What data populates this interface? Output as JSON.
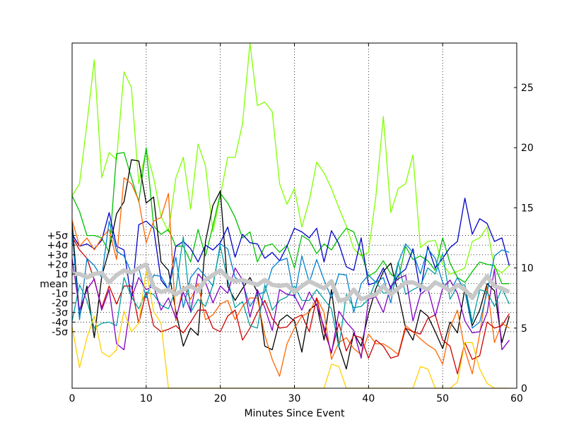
{
  "chart_data": {
    "type": "line",
    "title": "",
    "xlabel": "Minutes Since Event",
    "ylabel": "",
    "xlim": [
      0,
      60
    ],
    "ylim": [
      0,
      28.7
    ],
    "grid": true,
    "x_ticks": [
      0,
      10,
      20,
      30,
      40,
      50,
      60
    ],
    "right_y_ticks": [
      0,
      5,
      10,
      15,
      20,
      25
    ],
    "left_labels": [
      {
        "label": "+5σ",
        "value": 12.7
      },
      {
        "label": "+4σ",
        "value": 11.9
      },
      {
        "label": "+3σ",
        "value": 11.1
      },
      {
        "label": "+2σ",
        "value": 10.3
      },
      {
        "label": "1σ",
        "value": 9.5
      },
      {
        "label": "mean",
        "value": 8.7
      },
      {
        "label": "-1σ",
        "value": 7.9
      },
      {
        "label": "-2σ",
        "value": 7.1
      },
      {
        "label": "-3σ",
        "value": 6.3
      },
      {
        "label": "-4σ",
        "value": 5.5
      },
      {
        "label": "-5σ",
        "value": 4.7
      }
    ],
    "x": [
      0,
      1,
      2,
      3,
      4,
      5,
      6,
      7,
      8,
      9,
      10,
      11,
      12,
      13,
      14,
      15,
      16,
      17,
      18,
      19,
      20,
      21,
      22,
      23,
      24,
      25,
      26,
      27,
      28,
      29,
      30,
      31,
      32,
      33,
      34,
      35,
      36,
      37,
      38,
      39,
      40,
      41,
      42,
      43,
      44,
      45,
      46,
      47,
      48,
      49,
      50,
      51,
      52,
      53,
      54,
      55,
      56,
      57,
      58,
      59
    ],
    "series": [
      {
        "color": "#7fff00",
        "width": 1.3,
        "values": [
          16,
          17,
          22,
          27.3,
          17.5,
          19.6,
          19,
          26.3,
          25,
          17,
          19.8,
          17.5,
          14.3,
          13,
          17.5,
          19.2,
          14.9,
          20.3,
          18.5,
          13,
          16,
          19.2,
          19.2,
          22,
          28.7,
          23.5,
          23.8,
          23,
          17,
          15.3,
          16.6,
          13.4,
          15.6,
          18.8,
          17.9,
          16.6,
          15,
          13.5,
          11.6,
          11,
          11.3,
          16,
          22.6,
          14.6,
          16.6,
          17,
          19.4,
          11.7,
          12.2,
          12.3,
          10.3,
          9.5,
          9.7,
          10,
          12.2,
          12.5,
          13.4,
          10,
          9.6,
          10.2
        ]
      },
      {
        "color": "#00c000",
        "width": 1.3,
        "values": [
          16,
          14.7,
          12.7,
          12.7,
          12.5,
          11.3,
          19.5,
          19.6,
          17.5,
          15.5,
          20,
          13.5,
          12.8,
          13.2,
          11.8,
          11.8,
          10.5,
          13.2,
          11,
          13.5,
          16.2,
          15.4,
          14.2,
          12.5,
          13,
          10.5,
          11.8,
          12,
          11.3,
          11.9,
          10,
          12.7,
          12.3,
          11.2,
          12,
          11.5,
          12.5,
          13.3,
          13,
          11.3,
          9.3,
          9.7,
          10.6,
          9.5,
          9,
          11.8,
          10.7,
          11,
          10.6,
          9.8,
          12.5,
          10.4,
          9.2,
          8.8,
          9.7,
          10.5,
          10.3,
          10.2,
          8.7,
          8.7
        ]
      },
      {
        "color": "#0000c8",
        "width": 1.3,
        "values": [
          12.8,
          11.8,
          12,
          11.6,
          12.3,
          14.6,
          11.8,
          11.5,
          7.4,
          13.6,
          13.9,
          13.3,
          9,
          8.2,
          11.8,
          12.2,
          11.6,
          10.5,
          11.9,
          11.5,
          12.1,
          13.4,
          10.9,
          12.8,
          12.1,
          12,
          10.8,
          11.3,
          10.6,
          11.8,
          13.3,
          13,
          12.5,
          13.3,
          10.5,
          13.1,
          12,
          10.1,
          9.8,
          12.5,
          8.6,
          8.8,
          10,
          8.3,
          9.4,
          9.9,
          11.6,
          8,
          11.8,
          10,
          10.8,
          11.7,
          12.2,
          15.8,
          12.8,
          14.1,
          13.7,
          12.2,
          12.5,
          10.2
        ]
      },
      {
        "color": "#000000",
        "width": 1.3,
        "values": [
          13.8,
          6,
          8.5,
          4.2,
          9.3,
          11.5,
          14.5,
          15.5,
          19,
          18.9,
          15.4,
          15.9,
          10.5,
          9.8,
          6.4,
          3.5,
          5,
          4.4,
          12.2,
          15.2,
          16.4,
          8.5,
          7.3,
          8.3,
          9.2,
          8,
          3.5,
          3.2,
          5.6,
          6.1,
          5.6,
          3,
          6.5,
          7,
          4,
          8.2,
          3.5,
          1.6,
          4.6,
          3.5,
          6.2,
          8.3,
          9.7,
          10.4,
          7.9,
          5,
          4,
          6.5,
          6,
          4.7,
          3.3,
          5.5,
          4.6,
          8.3,
          5.2,
          6.5,
          8.7,
          8.1,
          3.8,
          6
        ]
      },
      {
        "color": "#ff6600",
        "width": 1.3,
        "values": [
          14,
          11.8,
          12.5,
          11.5,
          12.5,
          13.2,
          10.7,
          17.5,
          17,
          15.6,
          12.1,
          13.9,
          14.2,
          16.2,
          5.6,
          8.5,
          7.4,
          8.7,
          5.7,
          6.1,
          7,
          7.3,
          5.7,
          6.8,
          7.5,
          7.5,
          4.4,
          2.4,
          1,
          3.7,
          5,
          6,
          6.3,
          7.5,
          6.3,
          2.4,
          3.8,
          4.2,
          3.3,
          2.8,
          4.5,
          3.7,
          3.7,
          3.3,
          2.8,
          5.2,
          4.7,
          4.1,
          3.6,
          3.2,
          2,
          5,
          6.5,
          3.2,
          1.2,
          4.5,
          8.5,
          3.8,
          5.4,
          5
        ]
      },
      {
        "color": "#cc0000",
        "width": 1.3,
        "values": [
          12.6,
          11.5,
          10.8,
          9,
          6.7,
          8.5,
          7,
          8.5,
          8.5,
          5.4,
          8,
          5.2,
          4.7,
          4.9,
          5.2,
          4.6,
          5.5,
          6.5,
          6.5,
          5,
          4.7,
          6,
          6.5,
          4,
          5,
          6.3,
          7.3,
          5.8,
          5,
          5.1,
          5.8,
          6.1,
          4.7,
          7.5,
          4.8,
          3,
          5.4,
          3.1,
          4.4,
          4.2,
          2.5,
          4,
          3.5,
          2.5,
          2.7,
          5,
          4.7,
          4.5,
          5.8,
          6.1,
          4,
          3.5,
          1.2,
          3.8,
          2.4,
          2.7,
          5.5,
          5,
          5.2,
          6.2
        ]
      },
      {
        "color": "#0080d0",
        "width": 1.3,
        "values": [
          13,
          5.7,
          10.8,
          10.2,
          9.2,
          13.9,
          11.4,
          11,
          9.6,
          10,
          7.5,
          9.4,
          9.3,
          8.2,
          10.9,
          6.7,
          9.2,
          10,
          9.3,
          8.5,
          12,
          11.6,
          9.2,
          8.8,
          6.8,
          7.8,
          8,
          10,
          10.6,
          10.8,
          7.5,
          11,
          8.8,
          10.7,
          9,
          7.5,
          9.5,
          9.4,
          6.3,
          8.7,
          9.4,
          8.8,
          9.2,
          7.1,
          10.4,
          12,
          11.3,
          9.5,
          11.6,
          10.8,
          8.8,
          8,
          9.2,
          8.1,
          5,
          5.5,
          8,
          11,
          11.5,
          11.3
        ]
      },
      {
        "color": "#00a0a0",
        "width": 1.3,
        "values": [
          5.6,
          8.6,
          7.3,
          5,
          5.4,
          5.5,
          5.2,
          9.2,
          7.6,
          6.6,
          8,
          7.8,
          6.9,
          6.6,
          8.2,
          12.6,
          6.3,
          7.4,
          6.8,
          8.6,
          11.8,
          9,
          6.7,
          7.2,
          5.2,
          5,
          8.6,
          6.5,
          7.3,
          7.6,
          8.5,
          7.3,
          7.3,
          8.2,
          7.4,
          6.6,
          3.4,
          7.8,
          6.7,
          6.8,
          7.4,
          8.9,
          7.9,
          8,
          10.5,
          7.8,
          8.2,
          8.5,
          10,
          9.5,
          11.2,
          7.4,
          8.5,
          8.6,
          5.5,
          8.2,
          8,
          6.8,
          8.3,
          7
        ]
      },
      {
        "color": "#8000c0",
        "width": 1.3,
        "values": [
          10.8,
          6.5,
          8.2,
          9.1,
          6.5,
          8.2,
          3.7,
          3.2,
          7.5,
          9.2,
          8.2,
          8.5,
          6.5,
          7.5,
          5.8,
          8,
          6.4,
          9.5,
          8.8,
          7.1,
          8.5,
          7.9,
          10,
          9,
          5.9,
          8.2,
          6.7,
          4.8,
          8.2,
          7.8,
          7.7,
          6.5,
          8,
          6.9,
          5.1,
          2.9,
          6.4,
          5.5,
          4.8,
          2.5,
          7.4,
          7.6,
          6.3,
          8.5,
          9.1,
          9.4,
          5.6,
          7.8,
          8.3,
          6,
          8.3,
          9,
          7.9,
          5.6,
          4.6,
          4.7,
          6.3,
          9.9,
          3.2,
          4
        ]
      },
      {
        "color": "#ffd000",
        "width": 1.3,
        "values": [
          5.1,
          1.7,
          4.2,
          6,
          3,
          2.6,
          3.2,
          6.4,
          4.7,
          5.4,
          9.8,
          6.4,
          5.4,
          0,
          0,
          0,
          0,
          0,
          0,
          0,
          0,
          0,
          0,
          0,
          0,
          0,
          0,
          0,
          0,
          0,
          0,
          0,
          0,
          0,
          0,
          2,
          1.8,
          0,
          0,
          0,
          0,
          0,
          0,
          0,
          0,
          0,
          0,
          1.8,
          1.6,
          0,
          0,
          0,
          0.5,
          3.8,
          3.8,
          1.6,
          0.4,
          0,
          0,
          0
        ]
      },
      {
        "color": "#c8c8c8",
        "width": 6,
        "values": [
          9.5,
          9.5,
          9.2,
          9.5,
          9.6,
          8.8,
          9.4,
          9.8,
          9.6,
          10,
          10.3,
          8.4,
          8,
          8.2,
          7.8,
          8.2,
          8.5,
          8.1,
          9,
          9.4,
          9.8,
          9.2,
          8.9,
          9,
          8.8,
          8.6,
          9,
          8.6,
          8.5,
          8.6,
          8,
          8.5,
          8.9,
          8.6,
          8.3,
          8.9,
          7.3,
          7.4,
          8.2,
          7.4,
          7.6,
          7.8,
          8.5,
          7.8,
          8.3,
          8.8,
          8.8,
          8.5,
          8.2,
          8.8,
          8.5,
          8.1,
          8.6,
          8.2,
          7.5,
          8.5,
          9.3,
          8.5,
          8.3,
          8
        ]
      }
    ]
  }
}
